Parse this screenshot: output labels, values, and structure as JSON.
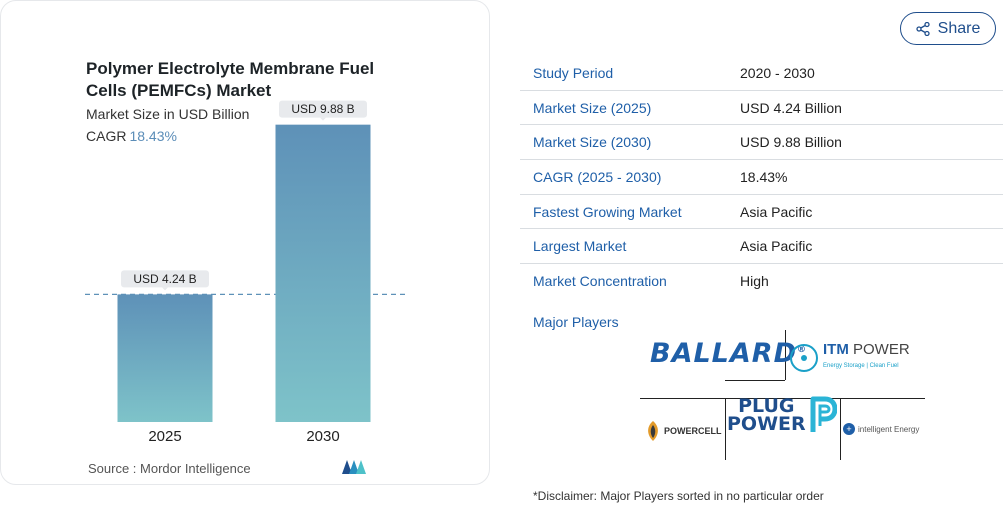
{
  "chart": {
    "title": "Polymer Electrolyte Membrane Fuel Cells (PEMFCs) Market",
    "subtitle": "Market Size in USD Billion",
    "cagr_label": "CAGR",
    "cagr_value": "18.43%",
    "source": "Source :  Mordor Intelligence",
    "colors": {
      "bar_top": "#5e91b8",
      "bar_bottom": "#7ec3c9",
      "callout_bg": "#e8eaed",
      "dash": "#5e91b8"
    }
  },
  "chart_data": {
    "type": "bar",
    "categories": [
      "2025",
      "2030"
    ],
    "values": [
      4.24,
      9.88
    ],
    "data_labels": [
      "USD 4.24 B",
      "USD 9.88 B"
    ],
    "title": "Polymer Electrolyte Membrane Fuel Cells (PEMFCs) Market",
    "ylabel": "Market Size in USD Billion",
    "ylim": [
      0,
      10.5
    ],
    "grid": false,
    "reference_line_value": 4.24
  },
  "share": {
    "label": "Share",
    "icon": "share-icon"
  },
  "table": {
    "rows": [
      {
        "key": "Study Period",
        "value": "2020 - 2030"
      },
      {
        "key": "Market Size (2025)",
        "value": "USD 4.24 Billion"
      },
      {
        "key": "Market Size (2030)",
        "value": "USD 9.88 Billion"
      },
      {
        "key": "CAGR (2025 - 2030)",
        "value": "18.43%"
      },
      {
        "key": "Fastest Growing Market",
        "value": "Asia Pacific"
      },
      {
        "key": "Largest Market",
        "value": "Asia Pacific"
      },
      {
        "key": "Market Concentration",
        "value": "High"
      }
    ]
  },
  "players": {
    "title": "Major Players",
    "ballard": "BALLARD",
    "ballard_mark": "®",
    "itm_name_1": "ITM",
    "itm_name_2": "POWER",
    "itm_tag": "Energy Storage | Clean Fuel",
    "powercell": "POWERCELL",
    "plug_1": "PLUG",
    "plug_2": "POWER",
    "intelligent_energy": "intelligent Energy"
  },
  "disclaimer": "*Disclaimer: Major Players sorted in no particular order"
}
